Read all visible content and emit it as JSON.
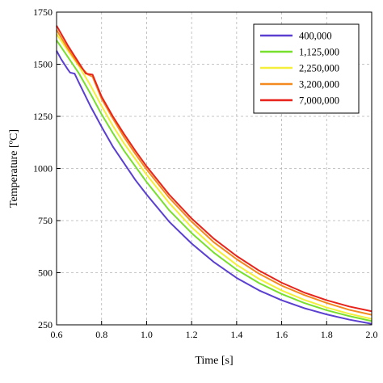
{
  "chart_data": {
    "type": "line",
    "title": "",
    "xlabel": "Time [s]",
    "ylabel": "Temperature [ºC]",
    "xlim": [
      0.6,
      2.0
    ],
    "ylim": [
      250,
      1750
    ],
    "xticks": [
      "0.6",
      "0.8",
      "1.0",
      "1.2",
      "1.4",
      "1.6",
      "1.8",
      "2.0"
    ],
    "yticks": [
      "250",
      "500",
      "750",
      "1000",
      "1250",
      "1500",
      "1750"
    ],
    "grid": true,
    "legend_position": "top-right",
    "series": [
      {
        "name": "400,000",
        "color": "#5b3fd0",
        "x": [
          0.6,
          0.62,
          0.65,
          0.66,
          0.68,
          0.7,
          0.75,
          0.8,
          0.85,
          0.9,
          0.95,
          1.0,
          1.1,
          1.2,
          1.3,
          1.4,
          1.5,
          1.6,
          1.7,
          1.8,
          1.9,
          2.0
        ],
        "y": [
          1565,
          1525,
          1475,
          1460,
          1455,
          1410,
          1300,
          1200,
          1105,
          1025,
          945,
          875,
          745,
          640,
          550,
          475,
          415,
          368,
          330,
          300,
          275,
          255
        ]
      },
      {
        "name": "1,125,000",
        "color": "#77e02c",
        "x": [
          0.6,
          0.65,
          0.7,
          0.75,
          0.8,
          0.85,
          0.9,
          0.95,
          1.0,
          1.1,
          1.2,
          1.3,
          1.4,
          1.5,
          1.6,
          1.7,
          1.8,
          1.9,
          2.0
        ],
        "y": [
          1615,
          1535,
          1455,
          1360,
          1260,
          1170,
          1085,
          1010,
          935,
          800,
          690,
          595,
          515,
          450,
          398,
          355,
          320,
          292,
          268
        ]
      },
      {
        "name": "2,250,000",
        "color": "#f4ef3a",
        "x": [
          0.6,
          0.65,
          0.7,
          0.75,
          0.8,
          0.85,
          0.9,
          0.95,
          1.0,
          1.1,
          1.2,
          1.3,
          1.4,
          1.5,
          1.6,
          1.7,
          1.8,
          1.9,
          2.0
        ],
        "y": [
          1645,
          1565,
          1490,
          1400,
          1300,
          1205,
          1120,
          1045,
          970,
          835,
          718,
          620,
          538,
          470,
          415,
          370,
          333,
          303,
          278
        ]
      },
      {
        "name": "3,200,000",
        "color": "#f4891f",
        "x": [
          0.6,
          0.65,
          0.7,
          0.74,
          0.76,
          0.8,
          0.85,
          0.9,
          0.95,
          1.0,
          1.1,
          1.2,
          1.3,
          1.4,
          1.5,
          1.6,
          1.7,
          1.8,
          1.9,
          2.0
        ],
        "y": [
          1665,
          1575,
          1495,
          1450,
          1440,
          1335,
          1240,
          1150,
          1070,
          995,
          860,
          745,
          645,
          565,
          495,
          438,
          393,
          355,
          322,
          298
        ]
      },
      {
        "name": "7,000,000",
        "color": "#e8231c",
        "x": [
          0.6,
          0.65,
          0.7,
          0.73,
          0.76,
          0.8,
          0.85,
          0.9,
          0.95,
          1.0,
          1.1,
          1.2,
          1.3,
          1.4,
          1.5,
          1.6,
          1.7,
          1.8,
          1.9,
          2.0
        ],
        "y": [
          1685,
          1590,
          1505,
          1455,
          1450,
          1345,
          1250,
          1165,
          1085,
          1010,
          875,
          760,
          662,
          580,
          510,
          452,
          405,
          368,
          338,
          315
        ]
      }
    ]
  }
}
